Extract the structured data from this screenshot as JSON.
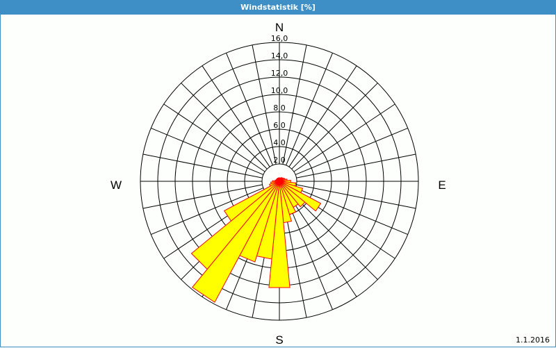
{
  "window": {
    "title": "Windstatistik [%]",
    "date": "1.1.2016"
  },
  "colors": {
    "titlebar": "#3d8fc6",
    "bar_fill": "#ffff00",
    "bar_stroke": "#ff0000",
    "grid": "#000000"
  },
  "chart_data": {
    "type": "polar-bar (wind rose)",
    "title": "Windstatistik [%]",
    "unit": "%",
    "directions_label": {
      "N": "N",
      "E": "E",
      "S": "S",
      "W": "W"
    },
    "radial_ticks": [
      "2,0",
      "4,0",
      "6,0",
      "8,0",
      "10,0",
      "12,0",
      "14,0",
      "16,0"
    ],
    "radial_range": [
      0,
      16
    ],
    "sector_width_deg": 11.25,
    "directions_deg": [
      0,
      11.25,
      22.5,
      33.75,
      45,
      56.25,
      67.5,
      78.75,
      90,
      101.25,
      112.5,
      123.75,
      135,
      146.25,
      157.5,
      168.75,
      180,
      191.25,
      202.5,
      213.75,
      225,
      236.25,
      247.5,
      258.75,
      270,
      281.25,
      292.5,
      303.75,
      315,
      326.25,
      337.5,
      348.75
    ],
    "values": [
      0.4,
      0.4,
      0.4,
      0.5,
      0.5,
      0.6,
      0.7,
      0.9,
      1.3,
      1.9,
      2.8,
      5.4,
      3.8,
      3.4,
      4.0,
      4.8,
      12.3,
      9.0,
      9.7,
      15.8,
      13.1,
      7.2,
      1.2,
      1.0,
      0.8,
      0.5,
      0.4,
      0.4,
      0.4,
      0.4,
      0.4,
      0.4
    ]
  }
}
